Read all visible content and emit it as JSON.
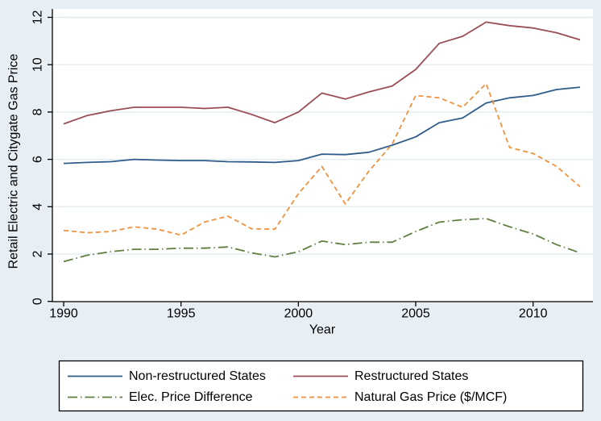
{
  "chart_data": {
    "type": "line",
    "title": "",
    "x_label": "Year",
    "y_label": "Retail Electric and Citygate Gas Price",
    "x": [
      1990,
      1991,
      1992,
      1993,
      1994,
      1995,
      1996,
      1997,
      1998,
      1999,
      2000,
      2001,
      2002,
      2003,
      2004,
      2005,
      2006,
      2007,
      2008,
      2009,
      2010,
      2011,
      2012
    ],
    "x_ticks": [
      1990,
      1995,
      2000,
      2005,
      2010
    ],
    "y_ticks": [
      0,
      2,
      4,
      6,
      8,
      10,
      12
    ],
    "xlim": [
      1989.5,
      2012.6
    ],
    "ylim": [
      0,
      12
    ],
    "grid": true,
    "legend_position": "bottom",
    "series": [
      {
        "name": "Non-restructured States",
        "color": "#2f5c8a",
        "dash": "solid",
        "values": [
          5.83,
          5.87,
          5.9,
          6.0,
          5.97,
          5.95,
          5.95,
          5.9,
          5.89,
          5.87,
          5.95,
          6.22,
          6.2,
          6.3,
          6.6,
          6.95,
          7.55,
          7.75,
          8.38,
          8.6,
          8.7,
          8.95,
          9.05
        ]
      },
      {
        "name": "Restructured States",
        "color": "#9a4d55",
        "dash": "solid",
        "values": [
          7.5,
          7.85,
          8.05,
          8.2,
          8.2,
          8.2,
          8.15,
          8.2,
          7.9,
          7.55,
          8.0,
          8.8,
          8.55,
          8.85,
          9.1,
          9.8,
          10.9,
          11.2,
          11.8,
          11.65,
          11.55,
          11.35,
          11.05
        ]
      },
      {
        "name": "Elec. Price Difference",
        "color": "#5f8042",
        "dash": "dashdot",
        "values": [
          1.68,
          1.95,
          2.1,
          2.2,
          2.2,
          2.25,
          2.25,
          2.3,
          2.05,
          1.88,
          2.1,
          2.55,
          2.4,
          2.5,
          2.5,
          2.95,
          3.35,
          3.45,
          3.5,
          3.15,
          2.85,
          2.4,
          2.05
        ]
      },
      {
        "name": "Natural Gas Price ($/MCF)",
        "color": "#f0913c",
        "dash": "dash",
        "values": [
          3.0,
          2.9,
          2.95,
          3.15,
          3.05,
          2.8,
          3.35,
          3.6,
          3.07,
          3.05,
          4.55,
          5.7,
          4.12,
          5.5,
          6.65,
          8.7,
          8.6,
          8.2,
          9.2,
          6.5,
          6.25,
          5.7,
          4.85
        ]
      }
    ]
  },
  "colors": {
    "background": "#e7eff5",
    "plot_background": "#ffffff",
    "gridline": "#dfe9f0",
    "axis": "#000000",
    "legend_background": "#ffffff",
    "legend_border": "#000000"
  }
}
